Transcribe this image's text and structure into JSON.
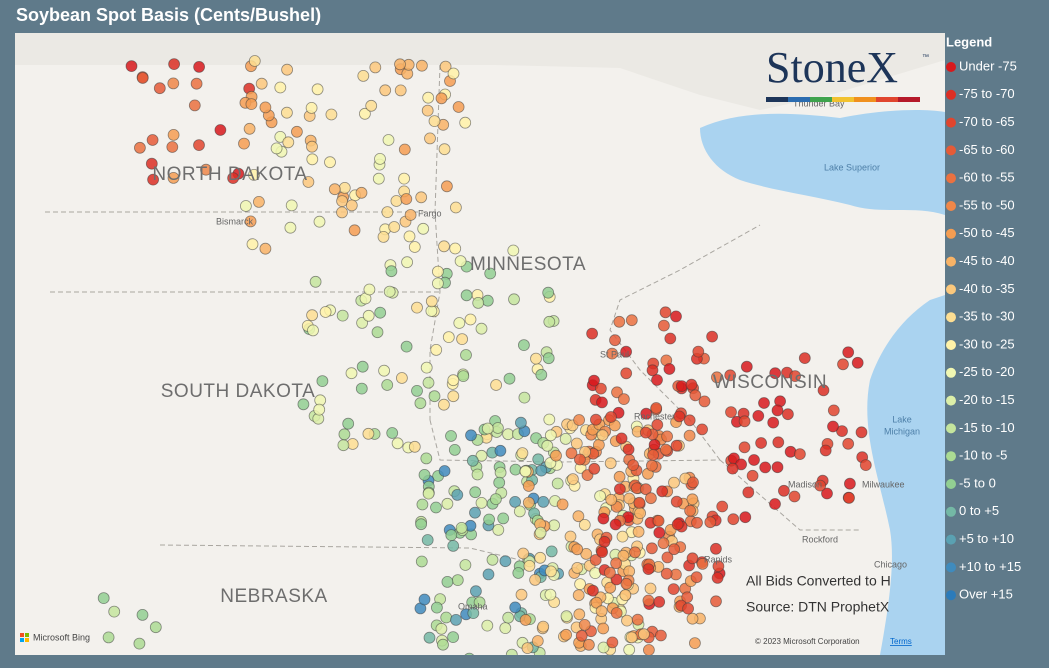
{
  "title": "Soybean Spot Basis (Cents/Bushel)",
  "legend": {
    "title": "Legend",
    "items": [
      {
        "label": "Under -75",
        "color": "#d7191c"
      },
      {
        "label": "-75 to -70",
        "color": "#db2f25"
      },
      {
        "label": "-70 to -65",
        "color": "#e0452e"
      },
      {
        "label": "-65 to -60",
        "color": "#e55b37"
      },
      {
        "label": "-60 to -55",
        "color": "#ea7140"
      },
      {
        "label": "-55 to -50",
        "color": "#ef8749"
      },
      {
        "label": "-50 to -45",
        "color": "#f49d52"
      },
      {
        "label": "-45 to -40",
        "color": "#f8b366"
      },
      {
        "label": "-40 to -35",
        "color": "#fbc87c"
      },
      {
        "label": "-35 to -30",
        "color": "#fdde92"
      },
      {
        "label": "-30 to -25",
        "color": "#fff2a8"
      },
      {
        "label": "-25 to -20",
        "color": "#f0f7b2"
      },
      {
        "label": "-20 to -15",
        "color": "#dcefa8"
      },
      {
        "label": "-15 to -10",
        "color": "#c4e59d"
      },
      {
        "label": "-10 to -5",
        "color": "#abdb93"
      },
      {
        "label": "-5 to 0",
        "color": "#92cf92"
      },
      {
        "label": "0 to +5",
        "color": "#74b8a5"
      },
      {
        "label": "+5 to +10",
        "color": "#5aa1b2"
      },
      {
        "label": "+10 to +15",
        "color": "#3f8bbd"
      },
      {
        "label": "Over +15",
        "color": "#2b7bba"
      }
    ]
  },
  "logo": {
    "name": "StoneX",
    "mark": "™"
  },
  "map_labels": {
    "states": [
      "NORTH DAKOTA",
      "MINNESOTA",
      "SOUTH DAKOTA",
      "WISCONSIN",
      "NEBRASKA"
    ],
    "cities": [
      "Bismarck",
      "Fargo",
      "St Paul",
      "Rochester",
      "Madison",
      "Milwaukee",
      "Rockford",
      "Chicago",
      "Omaha",
      "Rapids",
      "Thunder Bay"
    ],
    "lakes": [
      "Lake Superior",
      "Lake",
      "Michigan"
    ]
  },
  "notes": [
    "All Bids Converted to H",
    "Source: DTN ProphetX"
  ],
  "attribution": {
    "provider": "Microsoft Bing",
    "copyright": "© 2023 Microsoft Corporation",
    "terms": "Terms"
  }
}
